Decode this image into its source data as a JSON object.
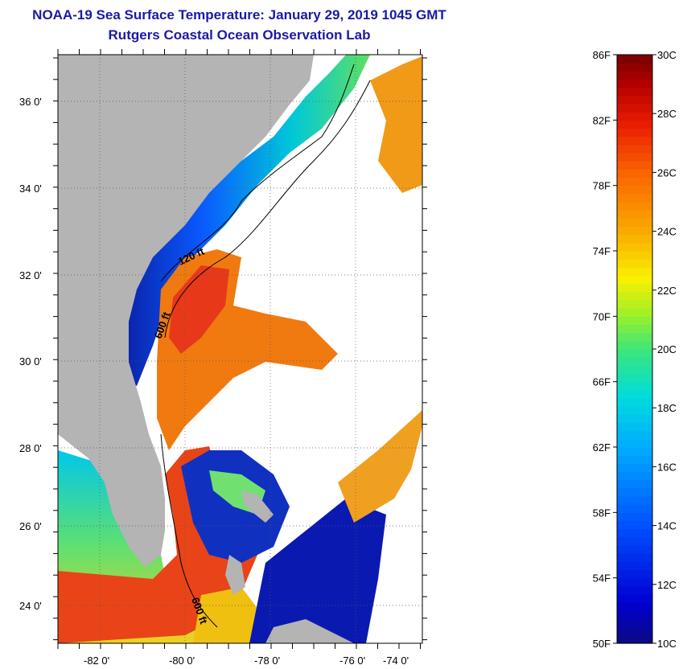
{
  "title": {
    "line1": "NOAA-19 Sea Surface Temperature:  January 29, 2019 1045 GMT",
    "line2": "Rutgers Coastal Ocean Observation Lab"
  },
  "map": {
    "lat_labels": [
      "36 0'",
      "34 0'",
      "32 0'",
      "30 0'",
      "28 0'",
      "26 0'",
      "24 0'"
    ],
    "lon_labels": [
      "-82 0'",
      "-80 0'",
      "-78 0'",
      "-76 0'",
      "-74 0'"
    ],
    "contours": [
      "120 ft",
      "600 ft",
      "600 ft"
    ],
    "colors": {
      "land": "#b4b4b4",
      "cloud": "#ffffff",
      "cold": "#0a1a9c",
      "mid": "#00c8d8",
      "warm": "#f07a10",
      "hot": "#e8281a"
    }
  },
  "colorbar": {
    "fahrenheit": [
      "86F",
      "82F",
      "78F",
      "74F",
      "70F",
      "66F",
      "62F",
      "58F",
      "54F",
      "50F"
    ],
    "celsius": [
      "30C",
      "28C",
      "26C",
      "24C",
      "22C",
      "20C",
      "18C",
      "16C",
      "14C",
      "12C",
      "10C"
    ],
    "min_f": 50,
    "max_f": 86,
    "min_c": 10,
    "max_c": 30
  }
}
